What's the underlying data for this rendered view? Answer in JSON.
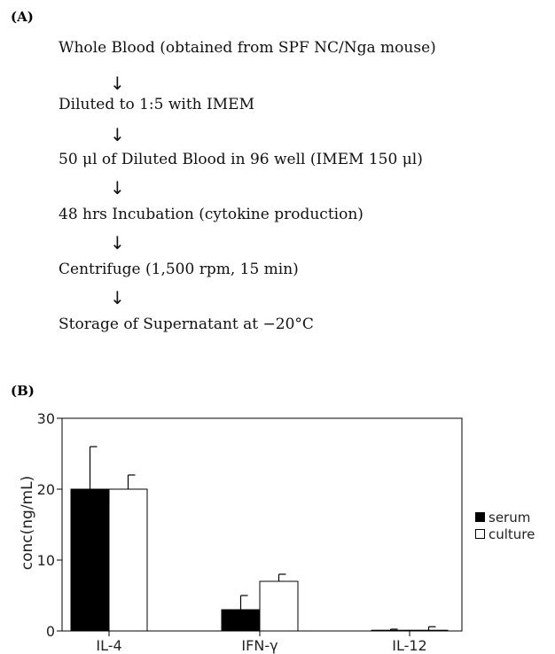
{
  "panel_a": {
    "label": "(A)",
    "steps": [
      "Whole Blood (obtained from SPF NC/Nga mouse)",
      "Diluted to 1:5 with IMEM",
      "50 μl of Diluted Blood in 96 well   (IMEM 150 μl)",
      "48 hrs Incubation (cytokine production)",
      "Centrifuge (1,500 rpm, 15 min)",
      "Storage of Supernatant at  −20°C"
    ],
    "arrow_glyph": "↓"
  },
  "panel_b": {
    "label": "(B)"
  },
  "chart_data": {
    "type": "bar",
    "ylabel": "conc(ng/mL)",
    "ylim": [
      0,
      30
    ],
    "yticks": [
      "0",
      "10",
      "20",
      "30"
    ],
    "categories": [
      "IL-4",
      "IFN-γ",
      "IL-12"
    ],
    "series": [
      {
        "name": "serum",
        "values": [
          20,
          3,
          0.1
        ],
        "errors": [
          6,
          2,
          0.15
        ],
        "color": "#000000"
      },
      {
        "name": "culture",
        "values": [
          20,
          7,
          0.1
        ],
        "errors": [
          2,
          1,
          0.5
        ],
        "color": "#ffffff"
      }
    ],
    "legend_position": "right"
  }
}
